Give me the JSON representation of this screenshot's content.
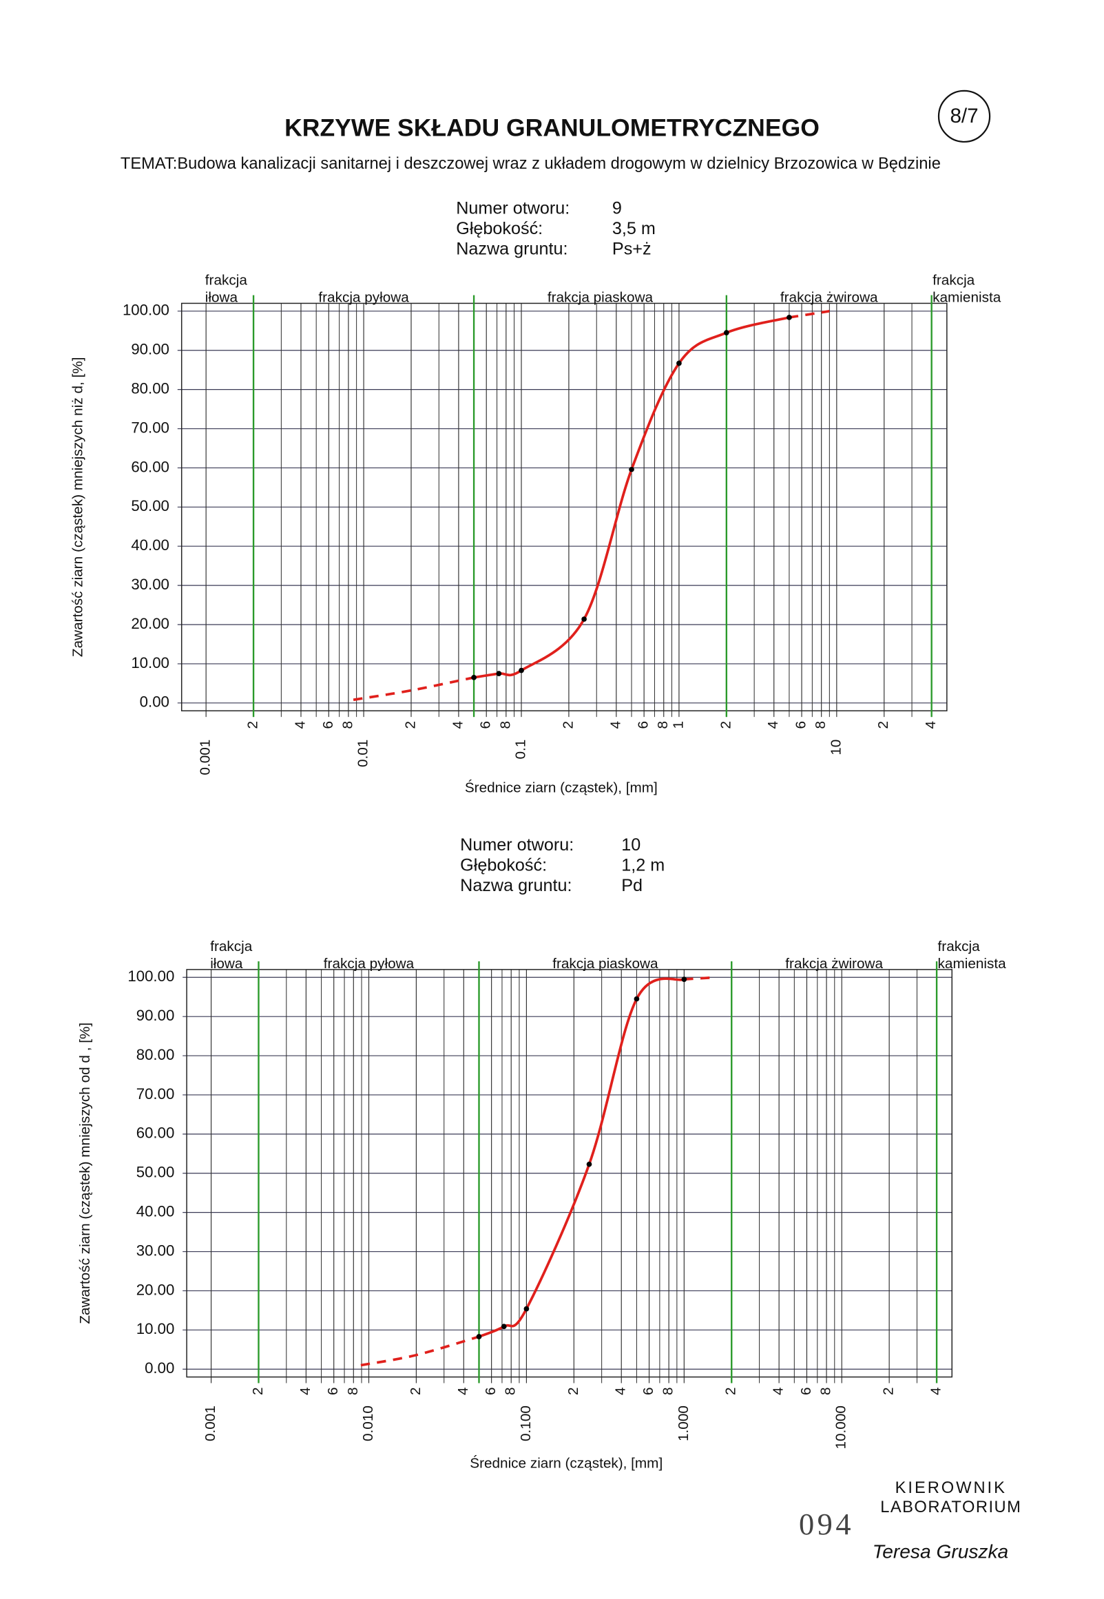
{
  "title": "KRZYWE SKŁADU GRANULOMETRYCZNEGO",
  "page_tag": "8/7",
  "subtitle": "TEMAT:Budowa kanalizacji sanitarnej i deszczowej wraz z układem drogowym w dzielnicy Brzozowica w Będzinie",
  "stamp": {
    "lines": [
      "KIEROWNIK",
      "LABORATORIUM"
    ],
    "number": "094",
    "signature": "Teresa Gruszka"
  },
  "chart_data": [
    {
      "type": "line",
      "xscale": "log",
      "grid": true,
      "color": "#e0201c",
      "point_color": "#000000",
      "fraction_color": "#2a9a2a",
      "info": [
        {
          "label": "Numer otworu:",
          "value": "9"
        },
        {
          "label": "Głębokość:",
          "value": "3,5 m"
        },
        {
          "label": "Nazwa gruntu:",
          "value": "Ps+ż"
        }
      ],
      "xlabel": "Średnice ziarn (cząstek), [mm]",
      "ylabel": "Zawartość ziarn (cząstek) mniejszych niż d, [%]",
      "fractions": [
        [
          "frakcja",
          "iłowa"
        ],
        [
          "frakcja pyłowa"
        ],
        [
          "frakcja piaskowa"
        ],
        [
          "frakcja żwirowa"
        ],
        [
          "frakcja",
          "kamienista"
        ]
      ],
      "fraction_bounds": [
        0.002,
        0.05,
        2,
        40
      ],
      "xlim": [
        0.0007,
        50
      ],
      "ylim": [
        -2,
        102
      ],
      "xticks": [
        {
          "value": 0.001,
          "label": "0.001"
        },
        {
          "value": 0.002,
          "label": "2"
        },
        {
          "value": 0.004,
          "label": "4"
        },
        {
          "value": 0.006,
          "label": "6"
        },
        {
          "value": 0.008,
          "label": "8"
        },
        {
          "value": 0.01,
          "label": "0.01"
        },
        {
          "value": 0.02,
          "label": "2"
        },
        {
          "value": 0.04,
          "label": "4"
        },
        {
          "value": 0.06,
          "label": "6"
        },
        {
          "value": 0.08,
          "label": "8"
        },
        {
          "value": 0.1,
          "label": "0.1"
        },
        {
          "value": 0.2,
          "label": "2"
        },
        {
          "value": 0.4,
          "label": "4"
        },
        {
          "value": 0.6,
          "label": "6"
        },
        {
          "value": 0.8,
          "label": "8"
        },
        1,
        2,
        4,
        6,
        8,
        10,
        {
          "value": 20,
          "label": "2"
        },
        {
          "value": 40,
          "label": "4"
        }
      ],
      "xminor_ticks": [
        0.003,
        0.005,
        0.007,
        0.009,
        0.03,
        0.05,
        0.07,
        0.09,
        0.3,
        0.5,
        0.7,
        0.9,
        3,
        5,
        7,
        9,
        30
      ],
      "yticks": [
        {
          "value": 0,
          "label": "0.00"
        },
        {
          "value": 10,
          "label": "10.00"
        },
        {
          "value": 20,
          "label": "20.00"
        },
        {
          "value": 30,
          "label": "30.00"
        },
        {
          "value": 40,
          "label": "40.00"
        },
        {
          "value": 50,
          "label": "50.00"
        },
        {
          "value": 60,
          "label": "60.00"
        },
        {
          "value": 70,
          "label": "70.00"
        },
        {
          "value": 80,
          "label": "80.00"
        },
        {
          "value": 90,
          "label": "90.00"
        },
        {
          "value": 100,
          "label": "100.00"
        }
      ],
      "curve": {
        "x": [
          0.05,
          0.072,
          0.1,
          0.25,
          0.5,
          1,
          2,
          5
        ],
        "values": [
          6.5,
          7.5,
          8.3,
          21.4,
          59.6,
          86.7,
          94.5,
          98.4
        ]
      },
      "extensions": [
        {
          "x": [
            0.0086,
            0.02,
            0.05
          ],
          "values": [
            0.8,
            3.2,
            6.5
          ]
        },
        {
          "x": [
            5,
            9
          ],
          "values": [
            98.4,
            100
          ]
        }
      ]
    },
    {
      "type": "line",
      "xscale": "log",
      "grid": true,
      "color": "#e0201c",
      "point_color": "#000000",
      "fraction_color": "#2a9a2a",
      "info": [
        {
          "label": "Numer otworu:",
          "value": "10"
        },
        {
          "label": "Głębokość:",
          "value": "1,2 m"
        },
        {
          "label": "Nazwa gruntu:",
          "value": "Pd"
        }
      ],
      "xlabel": "Średnice ziarn (cząstek), [mm]",
      "ylabel": "Zawartość ziarn (cząstek) mniejszych od d , [%]",
      "fractions": [
        [
          "frakcja",
          "iłowa"
        ],
        [
          "frakcja pyłowa"
        ],
        [
          "frakcja piaskowa"
        ],
        [
          "frakcja żwirowa"
        ],
        [
          "frakcja",
          "kamienista"
        ]
      ],
      "fraction_bounds": [
        0.002,
        0.05,
        2,
        40
      ],
      "xlim": [
        0.0007,
        50
      ],
      "ylim": [
        -2,
        102
      ],
      "xticks": [
        {
          "value": 0.001,
          "label": "0.001"
        },
        {
          "value": 0.002,
          "label": "2"
        },
        {
          "value": 0.004,
          "label": "4"
        },
        {
          "value": 0.006,
          "label": "6"
        },
        {
          "value": 0.008,
          "label": "8"
        },
        {
          "value": 0.01,
          "label": "0.010"
        },
        {
          "value": 0.02,
          "label": "2"
        },
        {
          "value": 0.04,
          "label": "4"
        },
        {
          "value": 0.06,
          "label": "6"
        },
        {
          "value": 0.08,
          "label": "8"
        },
        {
          "value": 0.1,
          "label": "0.100"
        },
        {
          "value": 0.2,
          "label": "2"
        },
        {
          "value": 0.4,
          "label": "4"
        },
        {
          "value": 0.6,
          "label": "6"
        },
        {
          "value": 0.8,
          "label": "8"
        },
        {
          "value": 1,
          "label": "1.000"
        },
        2,
        4,
        6,
        8,
        {
          "value": 10,
          "label": "10.000"
        },
        {
          "value": 20,
          "label": "2"
        },
        {
          "value": 40,
          "label": "4"
        }
      ],
      "xminor_ticks": [
        0.003,
        0.005,
        0.007,
        0.009,
        0.03,
        0.05,
        0.07,
        0.09,
        0.3,
        0.5,
        0.7,
        0.9,
        3,
        5,
        7,
        9,
        30
      ],
      "yticks": [
        {
          "value": 0,
          "label": "0.00"
        },
        {
          "value": 10,
          "label": "10.00"
        },
        {
          "value": 20,
          "label": "20.00"
        },
        {
          "value": 30,
          "label": "30.00"
        },
        {
          "value": 40,
          "label": "40.00"
        },
        {
          "value": 50,
          "label": "50.00"
        },
        {
          "value": 60,
          "label": "60.00"
        },
        {
          "value": 70,
          "label": "70.00"
        },
        {
          "value": 80,
          "label": "80.00"
        },
        {
          "value": 90,
          "label": "90.00"
        },
        {
          "value": 100,
          "label": "100.00"
        }
      ],
      "curve": {
        "x": [
          0.05,
          0.072,
          0.1,
          0.25,
          0.5,
          1
        ],
        "values": [
          8.3,
          10.9,
          15.4,
          52.3,
          94.5,
          99.5
        ]
      },
      "extensions": [
        {
          "x": [
            0.0089,
            0.02,
            0.05
          ],
          "values": [
            1.0,
            3.6,
            8.3
          ]
        },
        {
          "x": [
            1,
            1.6
          ],
          "values": [
            99.5,
            100
          ]
        }
      ]
    }
  ]
}
